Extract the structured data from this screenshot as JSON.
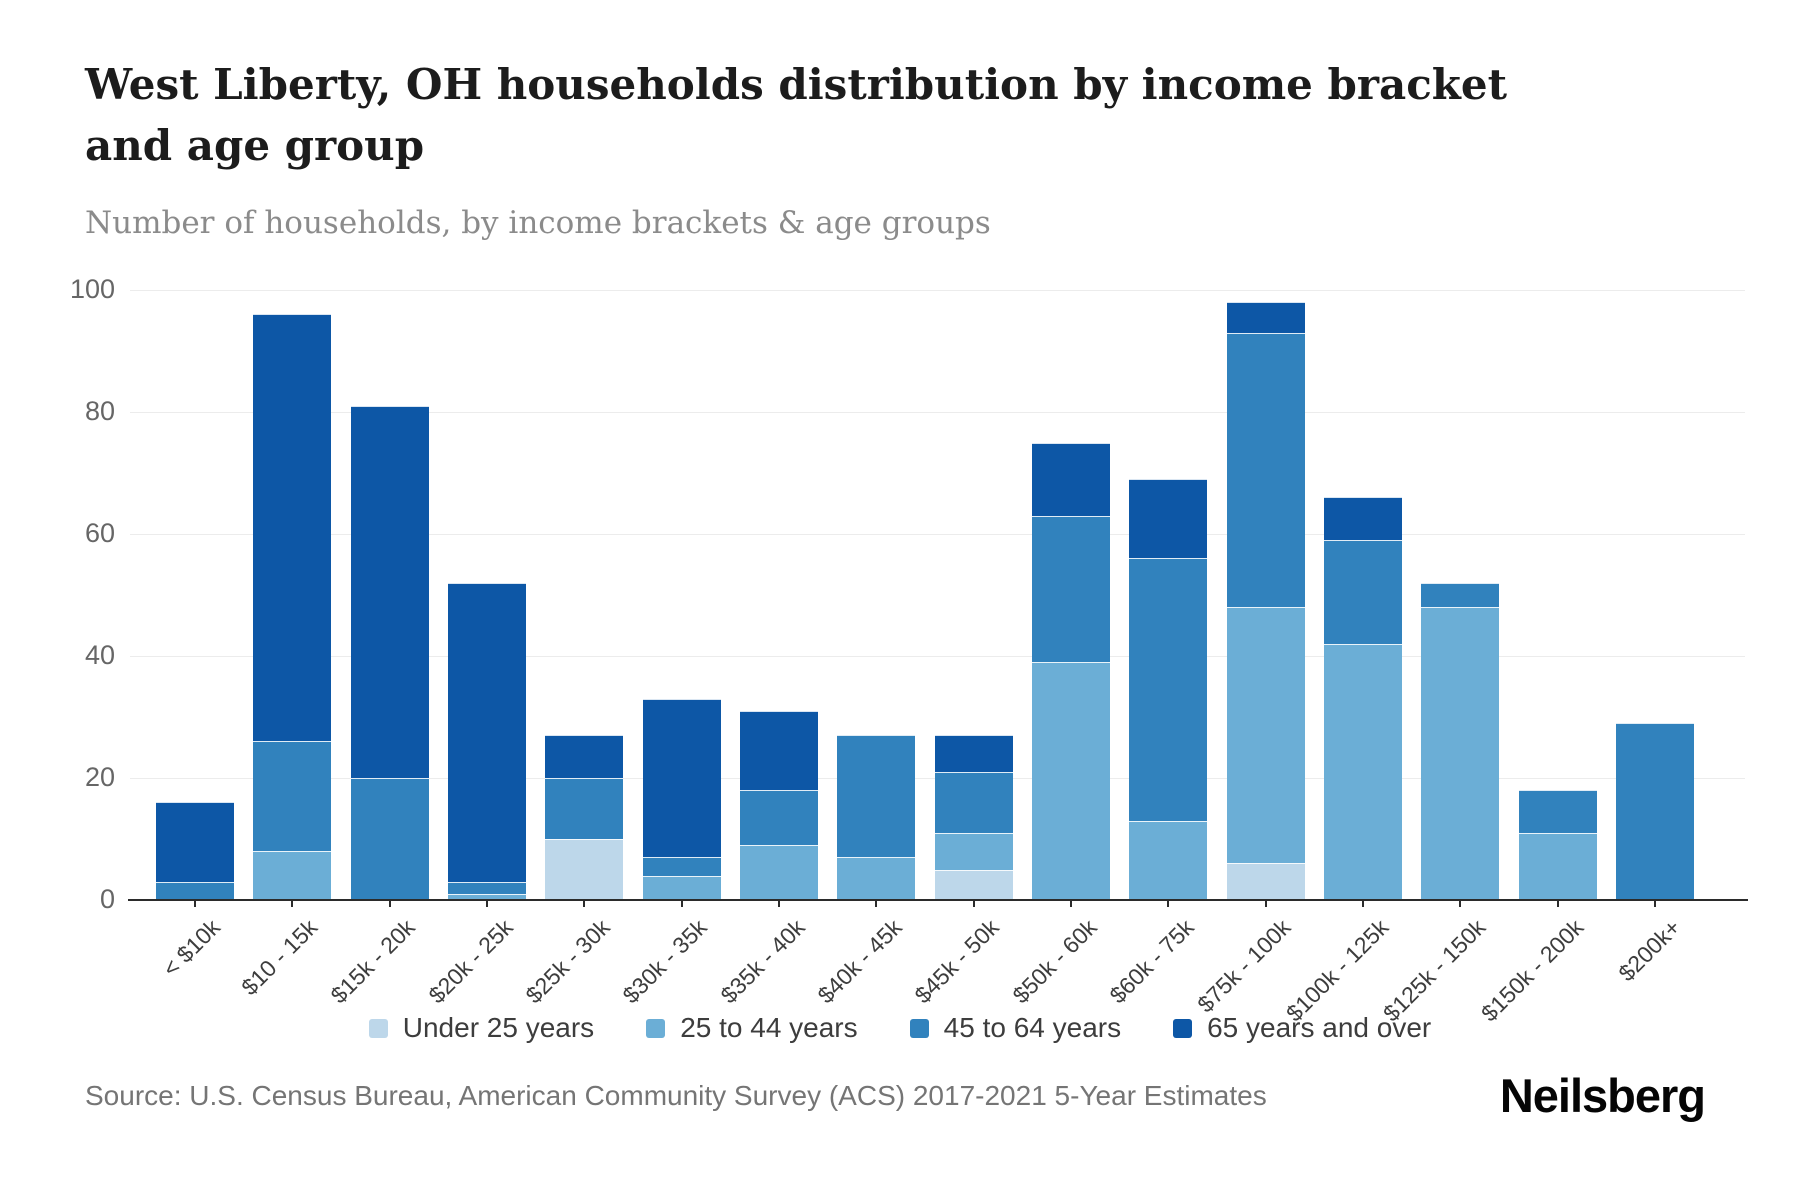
{
  "header": {
    "title": "West Liberty, OH households distribution by income bracket and age group",
    "subtitle": "Number of households, by income brackets & age groups"
  },
  "source": {
    "text": "Source: U.S. Census Bureau, American Community Survey (ACS) 2017-2021 5-Year Estimates"
  },
  "logo": {
    "text": "Neilsberg"
  },
  "chart_data": {
    "type": "bar",
    "stacked": true,
    "title": "West Liberty, OH households distribution by income bracket and age group",
    "subtitle": "Number of households, by income brackets & age groups",
    "xlabel": "",
    "ylabel": "Number of households",
    "ylim": [
      0,
      100
    ],
    "yticks": [
      0,
      20,
      40,
      60,
      80,
      100
    ],
    "grid": "horizontal",
    "legend_position": "bottom",
    "categories": [
      "< $10k",
      "$10 - 15k",
      "$15k - 20k",
      "$20k - 25k",
      "$25k - 30k",
      "$30k - 35k",
      "$35k - 40k",
      "$40k - 45k",
      "$45k - 50k",
      "$50k - 60k",
      "$60k - 75k",
      "$75k - 100k",
      "$100k - 125k",
      "$125k - 150k",
      "$150k - 200k",
      "$200k+"
    ],
    "series": [
      {
        "name": "Under 25 years",
        "color": "#bdd7ea",
        "values": [
          0,
          0,
          0,
          0,
          10,
          0,
          0,
          0,
          5,
          0,
          0,
          6,
          0,
          0,
          0,
          0
        ]
      },
      {
        "name": "25 to 44 years",
        "color": "#6baed6",
        "values": [
          0,
          8,
          0,
          1,
          0,
          4,
          9,
          7,
          6,
          39,
          13,
          42,
          42,
          48,
          11,
          0
        ]
      },
      {
        "name": "45 to 64 years",
        "color": "#3182bd",
        "values": [
          3,
          18,
          20,
          2,
          10,
          3,
          9,
          20,
          10,
          24,
          43,
          45,
          17,
          4,
          7,
          29
        ]
      },
      {
        "name": "65 years and over",
        "color": "#0d57a6",
        "values": [
          13,
          70,
          61,
          49,
          7,
          26,
          13,
          0,
          6,
          12,
          13,
          5,
          7,
          0,
          0,
          0
        ]
      }
    ],
    "totals": [
      16,
      96,
      81,
      52,
      27,
      33,
      31,
      27,
      27,
      75,
      69,
      98,
      66,
      52,
      18,
      29
    ]
  }
}
